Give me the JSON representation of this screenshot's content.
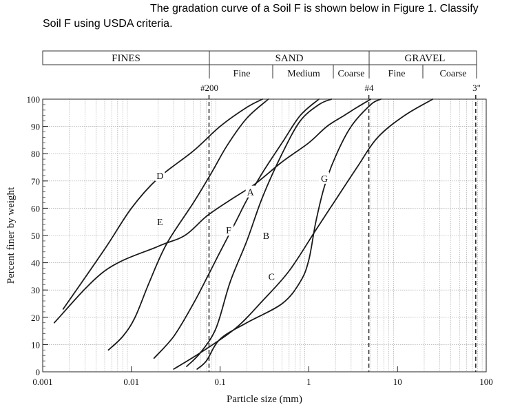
{
  "question": {
    "line1": "The gradation curve of a Soil F is shown below in Figure 1. Classify",
    "line2": "Soil F using USDA criteria."
  },
  "classification_header": {
    "fines": "FINES",
    "sand": "SAND",
    "gravel": "GRAVEL",
    "sand_fine": "Fine",
    "sand_medium": "Medium",
    "sand_coarse": "Coarse",
    "gravel_fine": "Fine",
    "gravel_coarse": "Coarse"
  },
  "sieve_labels": {
    "no200": "#200",
    "no4": "#4",
    "in3": "3\""
  },
  "chart_data": {
    "type": "line",
    "xlabel": "Particle size (mm)",
    "ylabel": "Percent finer by weight",
    "xscale": "log",
    "xlim": [
      0.001,
      100
    ],
    "ylim": [
      0,
      100
    ],
    "x_ticks": [
      0.001,
      0.01,
      0.1,
      1,
      10,
      100
    ],
    "x_tick_labels": [
      "0.001",
      "0.01",
      "0.1",
      "1",
      "10",
      "100"
    ],
    "y_ticks": [
      0,
      10,
      20,
      30,
      40,
      50,
      60,
      70,
      80,
      90,
      100
    ],
    "y_tick_labels": [
      "0",
      "10",
      "20",
      "30",
      "40",
      "50",
      "60",
      "70",
      "80",
      "90",
      "100"
    ],
    "grid": true,
    "sieve_lines": [
      0.075,
      4.75,
      76.2
    ],
    "boundaries": [
      0.075,
      0.25,
      0.425,
      2,
      4.75,
      19,
      76.2
    ],
    "series": [
      {
        "name": "A",
        "label_at": [
          0.22,
          66
        ],
        "points": [
          [
            0.00135,
            18
          ],
          [
            0.005,
            37
          ],
          [
            0.02,
            46
          ],
          [
            0.04,
            50
          ],
          [
            0.07,
            57
          ],
          [
            0.13,
            63
          ],
          [
            0.25,
            69
          ],
          [
            0.5,
            77
          ],
          [
            1.0,
            84
          ],
          [
            1.6,
            90
          ],
          [
            2.5,
            94
          ],
          [
            3.5,
            97
          ],
          [
            5.0,
            100
          ]
        ]
      },
      {
        "name": "B",
        "label_at": [
          0.33,
          50
        ],
        "points": [
          [
            0.042,
            2
          ],
          [
            0.06,
            7
          ],
          [
            0.09,
            16
          ],
          [
            0.13,
            33
          ],
          [
            0.2,
            48
          ],
          [
            0.3,
            64
          ],
          [
            0.5,
            80
          ],
          [
            0.8,
            92
          ],
          [
            1.3,
            98
          ],
          [
            1.8,
            100
          ]
        ]
      },
      {
        "name": "C",
        "label_at": [
          0.38,
          35
        ],
        "points": [
          [
            0.03,
            1
          ],
          [
            0.06,
            7
          ],
          [
            0.15,
            16
          ],
          [
            0.3,
            26
          ],
          [
            0.6,
            37
          ],
          [
            1.2,
            52
          ],
          [
            2.0,
            63
          ],
          [
            3.5,
            75
          ],
          [
            6.0,
            86
          ],
          [
            12,
            94
          ],
          [
            25,
            100
          ]
        ]
      },
      {
        "name": "D",
        "label_at": [
          0.021,
          72
        ],
        "points": [
          [
            0.0017,
            23
          ],
          [
            0.005,
            45
          ],
          [
            0.01,
            60
          ],
          [
            0.02,
            71
          ],
          [
            0.05,
            81
          ],
          [
            0.1,
            90
          ],
          [
            0.2,
            97
          ],
          [
            0.3,
            100
          ]
        ]
      },
      {
        "name": "E",
        "label_at": [
          0.021,
          55
        ],
        "points": [
          [
            0.0055,
            8
          ],
          [
            0.008,
            13
          ],
          [
            0.011,
            20
          ],
          [
            0.016,
            33
          ],
          [
            0.025,
            47
          ],
          [
            0.05,
            62
          ],
          [
            0.08,
            73
          ],
          [
            0.12,
            83
          ],
          [
            0.2,
            93
          ],
          [
            0.35,
            100
          ]
        ]
      },
      {
        "name": "F",
        "label_at": [
          0.125,
          52
        ],
        "points": [
          [
            0.018,
            5
          ],
          [
            0.03,
            13
          ],
          [
            0.05,
            25
          ],
          [
            0.075,
            36
          ],
          [
            0.1,
            44
          ],
          [
            0.15,
            55
          ],
          [
            0.2,
            63
          ],
          [
            0.3,
            73
          ],
          [
            0.5,
            84
          ],
          [
            0.8,
            94
          ],
          [
            1.3,
            100
          ]
        ]
      },
      {
        "name": "G",
        "label_at": [
          1.5,
          71
        ],
        "points": [
          [
            0.055,
            1
          ],
          [
            0.07,
            4
          ],
          [
            0.1,
            12
          ],
          [
            0.2,
            18
          ],
          [
            0.5,
            25
          ],
          [
            0.8,
            33
          ],
          [
            1.0,
            41
          ],
          [
            1.2,
            55
          ],
          [
            1.5,
            68
          ],
          [
            2.0,
            79
          ],
          [
            3.0,
            90
          ],
          [
            5.0,
            98
          ],
          [
            6.5,
            100
          ]
        ]
      }
    ]
  }
}
